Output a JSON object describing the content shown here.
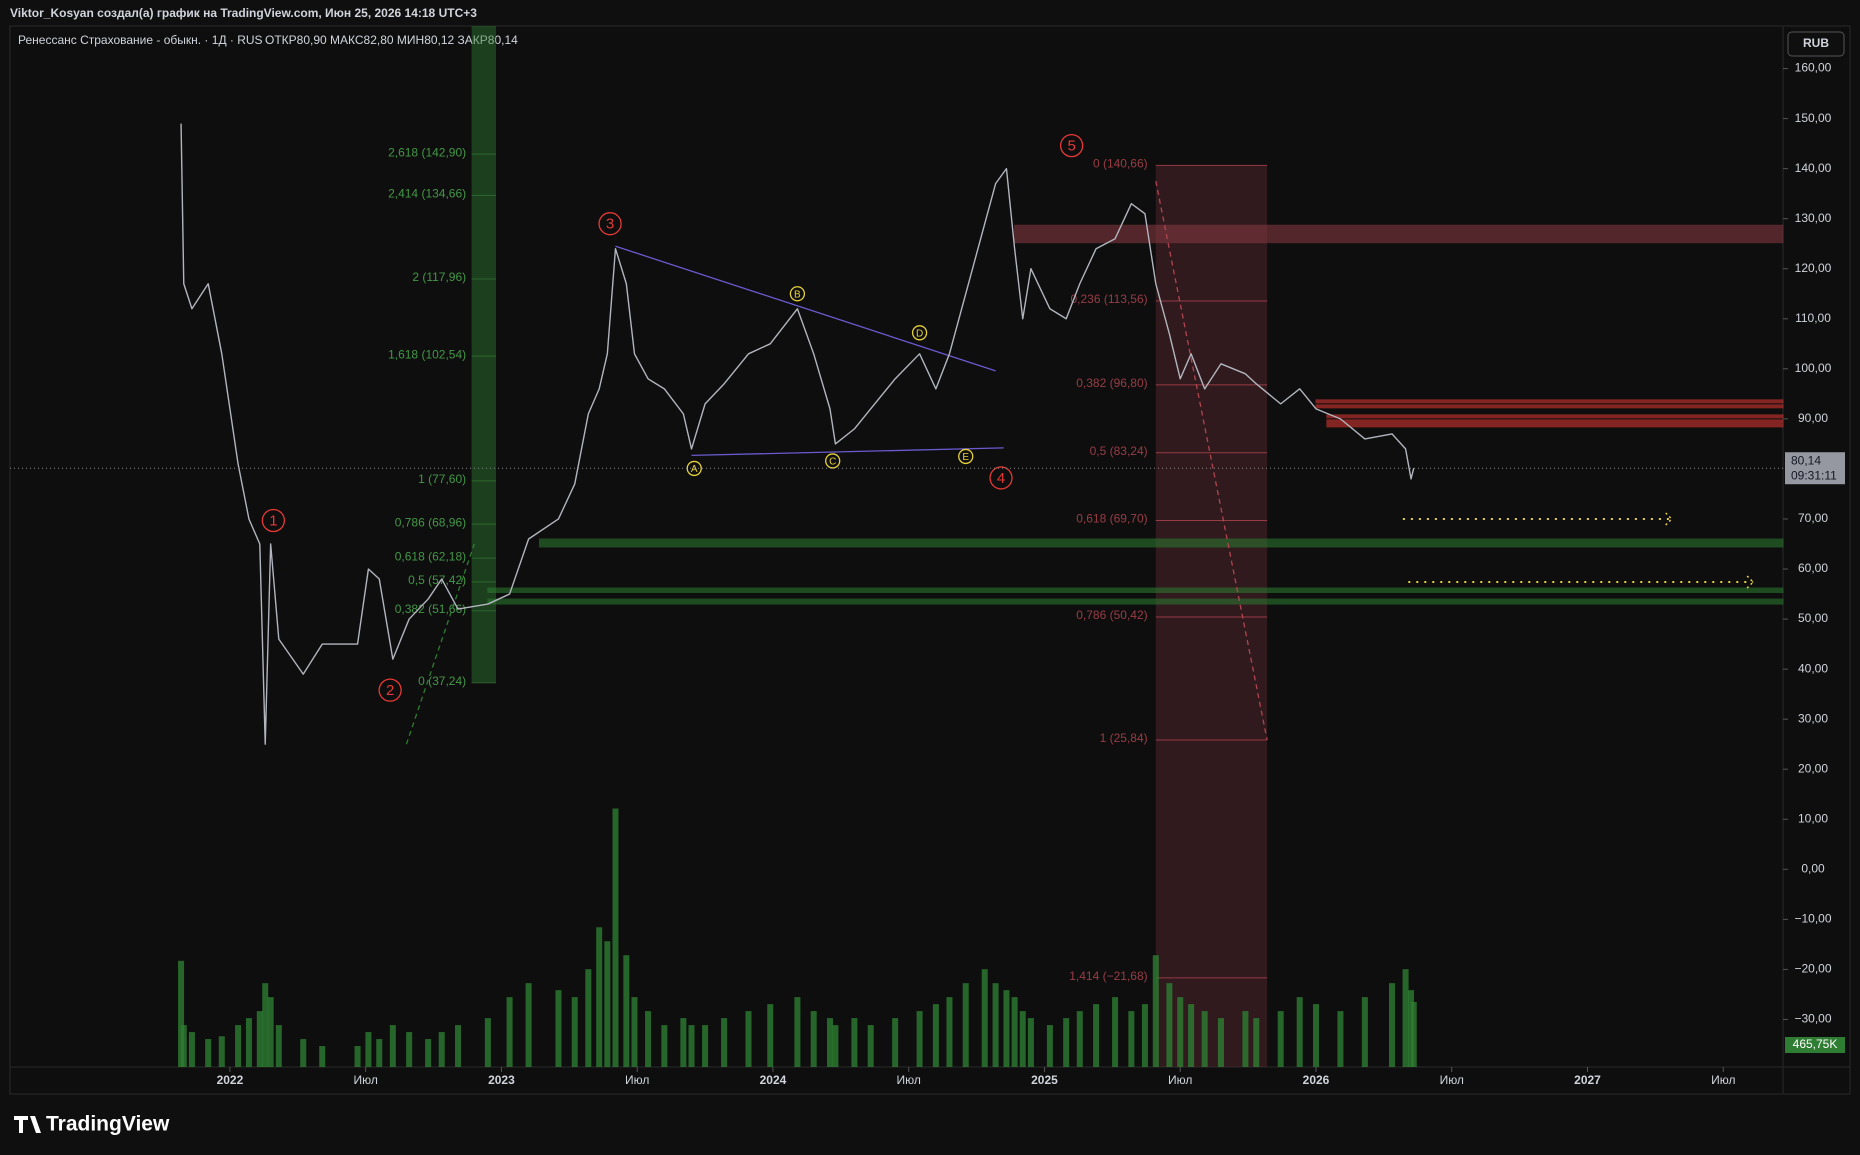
{
  "header": {
    "attribution": "Viktor_Kosyan создал(а) график на TradingView.com, Июн 25, 2026 14:18 UTC+3",
    "symbol": "Ренессанс Страхование - обыкн. · 1Д · RUS",
    "ohlc": "ОТКР80,90  МАКС82,80  МИН80,12  ЗАКР80,14",
    "currency": "RUB"
  },
  "footer": {
    "logo": "TradingView"
  },
  "chart_data": {
    "type": "line",
    "color": "#b2b5be",
    "x": [
      2021.82,
      2021.83,
      2021.86,
      2021.92,
      2021.97,
      2022.03,
      2022.07,
      2022.11,
      2022.13,
      2022.15,
      2022.18,
      2022.27,
      2022.34,
      2022.47,
      2022.51,
      2022.55,
      2022.6,
      2022.66,
      2022.73,
      2022.78,
      2022.84,
      2022.95,
      2023.03,
      2023.1,
      2023.21,
      2023.27,
      2023.32,
      2023.36,
      2023.39,
      2023.42,
      2023.46,
      2023.49,
      2023.54,
      2023.6,
      2023.67,
      2023.7,
      2023.75,
      2023.82,
      2023.91,
      2023.99,
      2024.09,
      2024.15,
      2024.21,
      2024.23,
      2024.3,
      2024.36,
      2024.45,
      2024.54,
      2024.6,
      2024.65,
      2024.71,
      2024.78,
      2024.82,
      2024.86,
      2024.89,
      2024.92,
      2024.95,
      2025.02,
      2025.08,
      2025.13,
      2025.19,
      2025.26,
      2025.32,
      2025.37,
      2025.41,
      2025.46,
      2025.5,
      2025.54,
      2025.59,
      2025.65,
      2025.74,
      2025.78,
      2025.87,
      2025.94,
      2026.0,
      2026.09,
      2026.18,
      2026.28,
      2026.33,
      2026.35,
      2026.36
    ],
    "values": [
      149,
      117,
      112,
      117,
      103,
      81,
      70,
      65,
      25,
      65,
      46,
      39,
      45,
      45,
      60,
      58,
      42,
      50,
      54,
      58,
      52,
      53,
      55,
      66,
      70,
      77,
      91,
      96,
      103,
      124,
      117,
      103,
      98,
      96,
      91,
      84,
      93,
      97,
      103,
      105,
      112,
      103,
      92,
      85,
      88,
      92,
      98,
      103,
      96,
      103,
      115,
      129,
      137,
      140,
      124,
      110,
      120,
      112,
      110,
      117,
      124,
      126,
      133,
      131,
      117,
      107,
      98,
      103,
      96,
      101,
      99,
      97,
      93,
      96,
      92,
      90,
      86,
      87,
      84,
      78,
      80.14
    ],
    "last_price": {
      "value": 80.14,
      "label": "80,14",
      "timer": "09:31:11"
    },
    "volume": {
      "color": "#2e7d32",
      "ylim": [
        0,
        7450
      ],
      "values": [
        760,
        300,
        250,
        200,
        220,
        300,
        350,
        400,
        600,
        500,
        300,
        200,
        150,
        150,
        250,
        200,
        300,
        250,
        200,
        250,
        300,
        350,
        500,
        600,
        550,
        500,
        700,
        1000,
        900,
        1850,
        800,
        500,
        400,
        300,
        350,
        300,
        300,
        350,
        400,
        450,
        500,
        400,
        350,
        300,
        350,
        300,
        350,
        400,
        450,
        500,
        600,
        700,
        600,
        550,
        500,
        400,
        350,
        300,
        350,
        400,
        450,
        500,
        400,
        450,
        800,
        600,
        500,
        450,
        400,
        350,
        400,
        350,
        400,
        500,
        450,
        400,
        500,
        600,
        700,
        550,
        465.75
      ],
      "last_label": "465,75K"
    },
    "xlim": [
      2021.19,
      2027.72
    ],
    "xticks": [
      2022,
      {
        "value": 2022.5,
        "label": "Июл"
      },
      2023,
      {
        "value": 2023.5,
        "label": "Июл"
      },
      2024,
      {
        "value": 2024.5,
        "label": "Июл"
      },
      2025,
      {
        "value": 2025.5,
        "label": "Июл"
      },
      2026,
      {
        "value": 2026.5,
        "label": "Июл"
      },
      2027,
      {
        "value": 2027.5,
        "label": "Июл"
      }
    ],
    "ylim": [
      -39.5,
      168.5
    ],
    "yticks": [
      {
        "value": 160,
        "label": "160,00"
      },
      {
        "value": 150,
        "label": "150,00"
      },
      {
        "value": 140,
        "label": "140,00"
      },
      {
        "value": 130,
        "label": "130,00"
      },
      {
        "value": 120,
        "label": "120,00"
      },
      {
        "value": 110,
        "label": "110,00"
      },
      {
        "value": 100,
        "label": "100,00"
      },
      {
        "value": 90,
        "label": "90,00"
      },
      {
        "value": 70,
        "label": "70,00"
      },
      {
        "value": 60,
        "label": "60,00"
      },
      {
        "value": 50,
        "label": "50,00"
      },
      {
        "value": 40,
        "label": "40,00"
      },
      {
        "value": 30,
        "label": "30,00"
      },
      {
        "value": 20,
        "label": "20,00"
      },
      {
        "value": 10,
        "label": "10,00"
      },
      {
        "value": 0,
        "label": "0,00"
      },
      {
        "value": -10,
        "label": "−10,00"
      },
      {
        "value": -20,
        "label": "−20,00"
      },
      {
        "value": -30,
        "label": "−30,00"
      }
    ],
    "bands": [
      {
        "from": 125.2,
        "to": 128.7,
        "x_start": 2024.89,
        "color": "#8a3a44"
      },
      {
        "from": 93.2,
        "to": 93.8,
        "x_start": 2026.0,
        "color": "#e53935"
      },
      {
        "from": 92.2,
        "to": 92.8,
        "x_start": 2026.0,
        "color": "#e53935"
      },
      {
        "from": 90.2,
        "to": 90.8,
        "x_start": 2026.04,
        "color": "#e53935"
      },
      {
        "from": 89.2,
        "to": 89.8,
        "x_start": 2026.04,
        "color": "#e53935"
      },
      {
        "from": 88.4,
        "to": 89.0,
        "x_start": 2026.04,
        "color": "#e53935"
      },
      {
        "from": 64.4,
        "to": 66.0,
        "x_start": 2023.14,
        "color": "#2e7d32"
      },
      {
        "from": 55.3,
        "to": 56.2,
        "x_start": 2022.95,
        "color": "#2e7d32"
      },
      {
        "from": 53.0,
        "to": 54.0,
        "x_start": 2022.95,
        "color": "#2e7d32"
      }
    ],
    "zones": [
      {
        "x_start": 2022.89,
        "x_end": 2022.98,
        "from": 37.24,
        "to": 168.5,
        "color": "#2e7d32"
      },
      {
        "x_start": 2025.41,
        "x_end": 2025.82,
        "from": -39.5,
        "to": 140.66,
        "color": "#5b2a30"
      }
    ],
    "fib_left": {
      "color": "#4caf50",
      "x_label": 2022.87,
      "x_start": 2022.89,
      "x_end": 2022.98,
      "levels": [
        {
          "label": "2,618 (142,90)",
          "value": 142.9
        },
        {
          "label": "2,414 (134,66)",
          "value": 134.66
        },
        {
          "label": "2 (117,96)",
          "value": 117.96
        },
        {
          "label": "1,618 (102,54)",
          "value": 102.54
        },
        {
          "label": "1 (77,60)",
          "value": 77.6
        },
        {
          "label": "0,786 (68,96)",
          "value": 68.96
        },
        {
          "label": "0,618 (62,18)",
          "value": 62.18
        },
        {
          "label": "0,5 (57,42)",
          "value": 57.42
        },
        {
          "label": "0,382 (51,66)",
          "value": 51.66
        },
        {
          "label": "0 (37,24)",
          "value": 37.24
        }
      ]
    },
    "fib_right": {
      "color": "#b0454f",
      "x_label": 2025.38,
      "x_start": 2025.41,
      "x_end": 2025.82,
      "levels": [
        {
          "label": "0 (140,66)",
          "value": 140.66
        },
        {
          "label": "0,236 (113,56)",
          "value": 113.56
        },
        {
          "label": "0,382 (96,80)",
          "value": 96.8
        },
        {
          "label": "0,5 (83,24)",
          "value": 83.24
        },
        {
          "label": "0,618 (69,70)",
          "value": 69.7
        },
        {
          "label": "0,786 (50,42)",
          "value": 50.42
        },
        {
          "label": "1 (25,84)",
          "value": 25.84
        },
        {
          "label": "1,414 (−21,68)",
          "value": -21.68
        }
      ]
    },
    "lines": [
      {
        "x": [
          2023.42,
          2024.82
        ],
        "y": [
          124.5,
          99.6
        ],
        "color": "#6a5acd",
        "dash": false
      },
      {
        "x": [
          2023.7,
          2024.85
        ],
        "y": [
          82.7,
          84.2
        ],
        "color": "#6a5acd",
        "dash": false
      },
      {
        "x": [
          2025.41,
          2025.82
        ],
        "y": [
          137.5,
          25.84
        ],
        "color": "#b0454f",
        "dash": true
      },
      {
        "x": [
          2022.65,
          2022.9
        ],
        "y": [
          25,
          65
        ],
        "color": "#2e7d32",
        "dash": true
      }
    ],
    "arrows": [
      {
        "x": [
          2026.32,
          2027.31
        ],
        "y": 70,
        "color": "#e6d23a"
      },
      {
        "x": [
          2026.34,
          2027.61
        ],
        "y": 57.4,
        "color": "#e6d23a"
      }
    ],
    "waves": [
      {
        "text": "1",
        "x": 2022.16,
        "y": 69.7,
        "color": "#e53935"
      },
      {
        "text": "2",
        "x": 2022.59,
        "y": 35.8,
        "color": "#e53935"
      },
      {
        "text": "3",
        "x": 2023.4,
        "y": 129,
        "color": "#e53935"
      },
      {
        "text": "4",
        "x": 2024.84,
        "y": 78.2,
        "color": "#e53935"
      },
      {
        "text": "5",
        "x": 2025.1,
        "y": 144.6,
        "color": "#e53935"
      },
      {
        "text": "A",
        "x": 2023.71,
        "y": 80.1,
        "color": "#e6d23a"
      },
      {
        "text": "B",
        "x": 2024.09,
        "y": 115,
        "color": "#e6d23a"
      },
      {
        "text": "C",
        "x": 2024.22,
        "y": 81.6,
        "color": "#e6d23a"
      },
      {
        "text": "D",
        "x": 2024.54,
        "y": 107.2,
        "color": "#e6d23a"
      },
      {
        "text": "E",
        "x": 2024.71,
        "y": 82.5,
        "color": "#e6d23a"
      }
    ]
  }
}
